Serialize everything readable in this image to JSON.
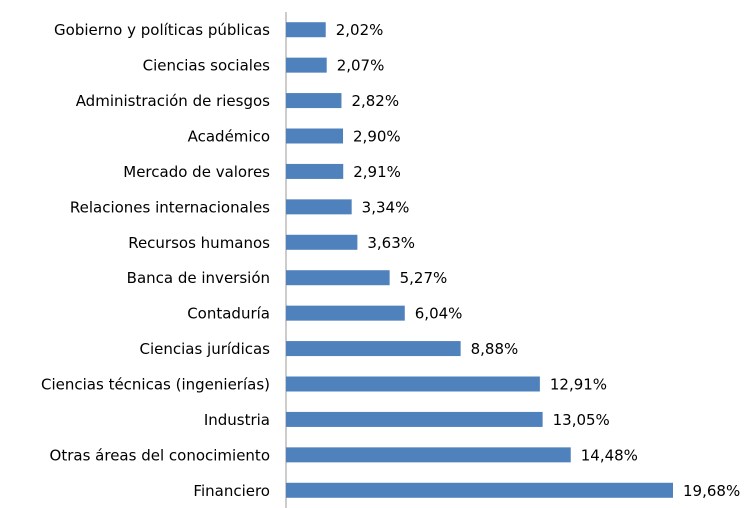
{
  "chart_data": {
    "type": "bar",
    "orientation": "horizontal",
    "categories": [
      "Gobierno y políticas públicas",
      "Ciencias sociales",
      "Administración de riesgos",
      "Académico",
      "Mercado de valores",
      "Relaciones internacionales",
      "Recursos humanos",
      "Banca de inversión",
      "Contaduría",
      "Ciencias jurídicas",
      "Ciencias técnicas (ingenierías)",
      "Industria",
      "Otras áreas del conocimiento",
      "Financiero"
    ],
    "values": [
      2.02,
      2.07,
      2.82,
      2.9,
      2.91,
      3.34,
      3.63,
      5.27,
      6.04,
      8.88,
      12.91,
      13.05,
      14.48,
      19.68
    ],
    "value_labels": [
      "2,02%",
      "2,07%",
      "2,82%",
      "2,90%",
      "2,91%",
      "3,34%",
      "3,63%",
      "5,27%",
      "6,04%",
      "8,88%",
      "12,91%",
      "13,05%",
      "14,48%",
      "19,68%"
    ],
    "color": "#4f81bd"
  }
}
